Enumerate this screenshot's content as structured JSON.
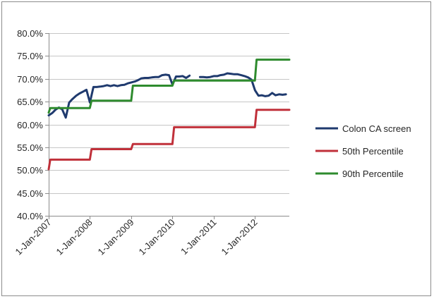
{
  "chart_data": {
    "type": "line",
    "title": "",
    "xlabel": "",
    "ylabel": "",
    "ylim": [
      0.4,
      0.8
    ],
    "y_ticks": [
      0.4,
      0.45,
      0.5,
      0.55,
      0.6,
      0.65,
      0.7,
      0.75,
      0.8
    ],
    "y_tick_labels": [
      "40.0%",
      "45.0%",
      "50.0%",
      "55.0%",
      "60.0%",
      "65.0%",
      "70.0%",
      "75.0%",
      "80.0%"
    ],
    "x_range": [
      "2007-01-01",
      "2012-10-31"
    ],
    "x_ticks": [
      "2007-01-01",
      "2008-01-01",
      "2009-01-01",
      "2010-01-01",
      "2011-01-01",
      "2012-01-01"
    ],
    "x_tick_labels": [
      "1-Jan-2007",
      "1-Jan-2008",
      "1-Jan-2009",
      "1-Jan-2010",
      "1-Jan-2011",
      "1-Jan-2012"
    ],
    "grid": "horizontal",
    "legend_position": "right",
    "series": [
      {
        "name": "Colon CA screen",
        "color": "#1f3a6e",
        "points": [
          [
            "2007-01-01",
            0.62
          ],
          [
            "2007-02-01",
            0.625
          ],
          [
            "2007-03-01",
            0.632
          ],
          [
            "2007-04-01",
            0.637
          ],
          [
            "2007-05-01",
            0.633
          ],
          [
            "2007-06-01",
            0.615
          ],
          [
            "2007-07-01",
            0.648
          ],
          [
            "2007-08-01",
            0.656
          ],
          [
            "2007-09-01",
            0.663
          ],
          [
            "2007-10-01",
            0.668
          ],
          [
            "2007-11-01",
            0.672
          ],
          [
            "2007-12-01",
            0.676
          ],
          [
            "2008-01-01",
            0.648
          ],
          [
            "2008-02-01",
            0.682
          ],
          [
            "2008-03-01",
            0.682
          ],
          [
            "2008-04-01",
            0.683
          ],
          [
            "2008-05-01",
            0.684
          ],
          [
            "2008-06-01",
            0.686
          ],
          [
            "2008-07-01",
            0.684
          ],
          [
            "2008-08-01",
            0.686
          ],
          [
            "2008-09-01",
            0.684
          ],
          [
            "2008-10-01",
            0.686
          ],
          [
            "2008-11-01",
            0.687
          ],
          [
            "2008-12-01",
            0.69
          ],
          [
            "2009-01-01",
            0.692
          ],
          [
            "2009-02-01",
            0.694
          ],
          [
            "2009-03-01",
            0.697
          ],
          [
            "2009-04-01",
            0.701
          ],
          [
            "2009-05-01",
            0.702
          ],
          [
            "2009-06-01",
            0.702
          ],
          [
            "2009-07-01",
            0.703
          ],
          [
            "2009-08-01",
            0.704
          ],
          [
            "2009-09-01",
            0.704
          ],
          [
            "2009-10-01",
            0.708
          ],
          [
            "2009-11-01",
            0.709
          ],
          [
            "2009-12-01",
            0.708
          ],
          [
            "2010-01-01",
            0.687
          ],
          [
            "2010-02-01",
            0.705
          ],
          [
            "2010-03-01",
            0.705
          ],
          [
            "2010-04-01",
            0.706
          ],
          [
            "2010-05-01",
            0.702
          ],
          [
            "2010-06-01",
            0.707
          ],
          [
            "2010-09-01",
            0.704
          ],
          [
            "2010-10-01",
            0.704
          ],
          [
            "2010-11-01",
            0.703
          ],
          [
            "2010-12-01",
            0.704
          ],
          [
            "2011-01-01",
            0.706
          ],
          [
            "2011-02-01",
            0.706
          ],
          [
            "2011-03-01",
            0.708
          ],
          [
            "2011-04-01",
            0.709
          ],
          [
            "2011-05-01",
            0.712
          ],
          [
            "2011-06-01",
            0.711
          ],
          [
            "2011-07-01",
            0.71
          ],
          [
            "2011-08-01",
            0.71
          ],
          [
            "2011-09-01",
            0.708
          ],
          [
            "2011-10-01",
            0.706
          ],
          [
            "2011-11-01",
            0.703
          ],
          [
            "2011-12-01",
            0.698
          ],
          [
            "2012-01-01",
            0.675
          ],
          [
            "2012-02-01",
            0.663
          ],
          [
            "2012-03-01",
            0.664
          ],
          [
            "2012-04-01",
            0.662
          ],
          [
            "2012-05-01",
            0.663
          ],
          [
            "2012-06-01",
            0.669
          ],
          [
            "2012-07-01",
            0.664
          ],
          [
            "2012-08-01",
            0.666
          ],
          [
            "2012-09-01",
            0.665
          ],
          [
            "2012-10-01",
            0.666
          ]
        ]
      },
      {
        "name": "50th Percentile",
        "color": "#c0303a",
        "points": [
          [
            "2007-01-01",
            0.502
          ],
          [
            "2007-01-15",
            0.523
          ],
          [
            "2007-12-31",
            0.523
          ],
          [
            "2008-01-15",
            0.546
          ],
          [
            "2008-12-31",
            0.546
          ],
          [
            "2009-01-15",
            0.557
          ],
          [
            "2009-12-31",
            0.557
          ],
          [
            "2010-01-15",
            0.594
          ],
          [
            "2011-12-31",
            0.594
          ],
          [
            "2012-01-15",
            0.632
          ],
          [
            "2012-10-31",
            0.632
          ]
        ]
      },
      {
        "name": "90th Percentile",
        "color": "#2e8b2e",
        "points": [
          [
            "2007-01-01",
            0.626
          ],
          [
            "2007-01-15",
            0.636
          ],
          [
            "2007-12-31",
            0.636
          ],
          [
            "2008-01-15",
            0.652
          ],
          [
            "2008-12-31",
            0.652
          ],
          [
            "2009-01-15",
            0.685
          ],
          [
            "2009-12-31",
            0.685
          ],
          [
            "2010-01-15",
            0.696
          ],
          [
            "2011-12-31",
            0.696
          ],
          [
            "2012-01-15",
            0.742
          ],
          [
            "2012-10-31",
            0.742
          ]
        ]
      }
    ]
  }
}
